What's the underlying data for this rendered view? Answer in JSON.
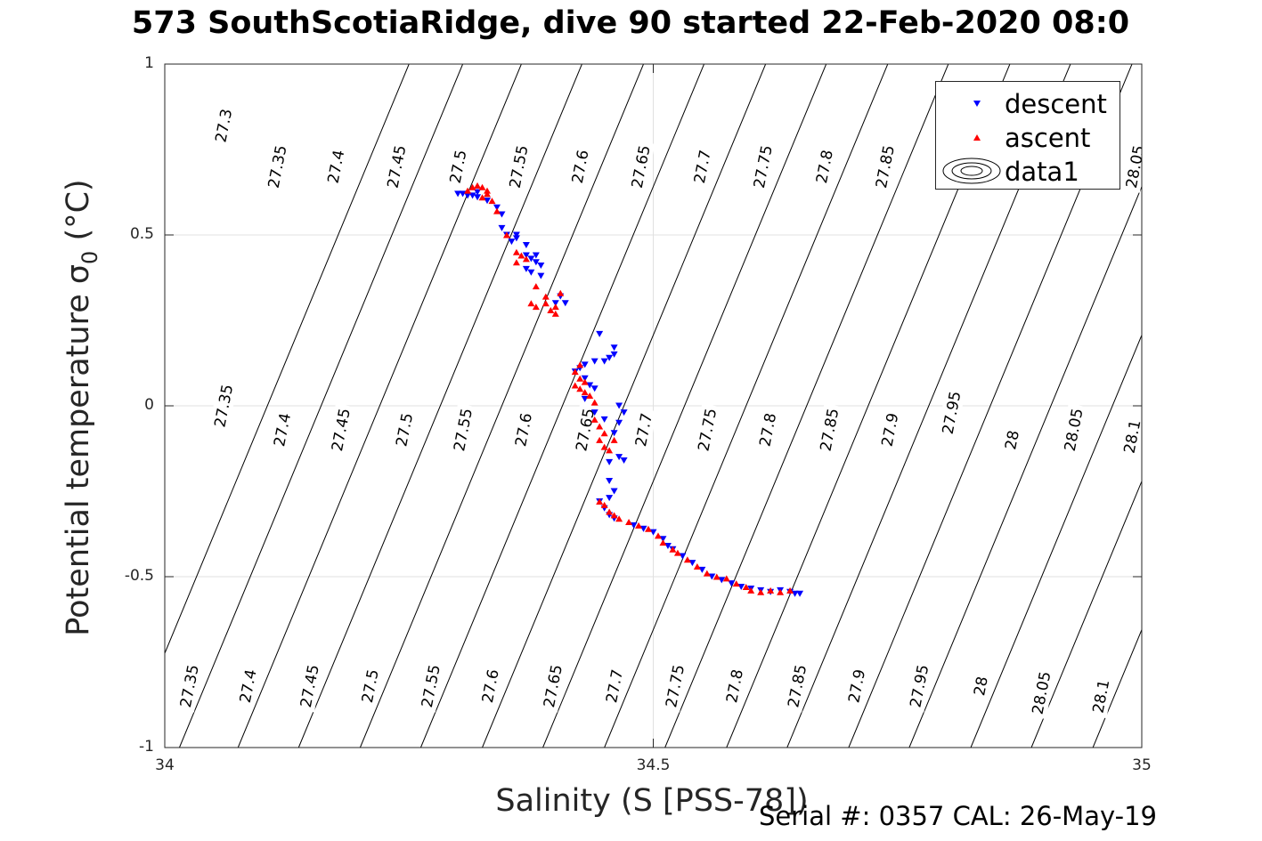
{
  "chart_data": {
    "type": "scatter",
    "title": "573 SouthScotiaRidge, dive 90 started 22-Feb-2020 08:0",
    "xlabel": "Salinity (S [PSS-78])",
    "ylabel_main": "Potential temperature σ",
    "ylabel_sub": "0",
    "ylabel_unit": " (°C)",
    "xlim": [
      34,
      35
    ],
    "ylim": [
      -1,
      1
    ],
    "xticks": [
      {
        "value": 34,
        "label": "34"
      },
      {
        "value": 34.5,
        "label": "34.5"
      },
      {
        "value": 35,
        "label": "35"
      }
    ],
    "yticks": [
      {
        "value": 1,
        "label": "1"
      },
      {
        "value": 0.5,
        "label": "0.5"
      },
      {
        "value": 0,
        "label": "0"
      },
      {
        "value": -0.5,
        "label": "-0.5"
      },
      {
        "value": -1,
        "label": "-1"
      }
    ],
    "grid": true,
    "legend_position": "top-right",
    "series": [
      {
        "name": "descent",
        "marker": "triangle-down",
        "color": "#0000ff",
        "points": [
          [
            34.3,
            0.62
          ],
          [
            34.305,
            0.62
          ],
          [
            34.31,
            0.615
          ],
          [
            34.315,
            0.615
          ],
          [
            34.32,
            0.61
          ],
          [
            34.32,
            0.625
          ],
          [
            34.33,
            0.6
          ],
          [
            34.34,
            0.58
          ],
          [
            34.345,
            0.56
          ],
          [
            34.345,
            0.52
          ],
          [
            34.35,
            0.5
          ],
          [
            34.355,
            0.48
          ],
          [
            34.36,
            0.49
          ],
          [
            34.36,
            0.5
          ],
          [
            34.37,
            0.47
          ],
          [
            34.37,
            0.44
          ],
          [
            34.375,
            0.43
          ],
          [
            34.38,
            0.42
          ],
          [
            34.38,
            0.44
          ],
          [
            34.37,
            0.4
          ],
          [
            34.375,
            0.39
          ],
          [
            34.385,
            0.38
          ],
          [
            34.385,
            0.41
          ],
          [
            34.405,
            0.32
          ],
          [
            34.4,
            0.3
          ],
          [
            34.41,
            0.3
          ],
          [
            34.43,
            0.12
          ],
          [
            34.44,
            0.13
          ],
          [
            34.45,
            0.13
          ],
          [
            34.455,
            0.14
          ],
          [
            34.46,
            0.15
          ],
          [
            34.46,
            0.17
          ],
          [
            34.42,
            0.1
          ],
          [
            34.445,
            0.21
          ],
          [
            34.425,
            0.11
          ],
          [
            34.43,
            0.08
          ],
          [
            34.435,
            0.06
          ],
          [
            34.44,
            0.05
          ],
          [
            34.43,
            0.02
          ],
          [
            34.44,
            -0.02
          ],
          [
            34.45,
            -0.04
          ],
          [
            34.465,
            -0.05
          ],
          [
            34.47,
            -0.02
          ],
          [
            34.465,
            0.0
          ],
          [
            34.46,
            -0.08
          ],
          [
            34.455,
            -0.165
          ],
          [
            34.465,
            -0.15
          ],
          [
            34.47,
            -0.16
          ],
          [
            34.455,
            -0.22
          ],
          [
            34.46,
            -0.25
          ],
          [
            34.455,
            -0.27
          ],
          [
            34.445,
            -0.28
          ],
          [
            34.45,
            -0.3
          ],
          [
            34.455,
            -0.32
          ],
          [
            34.46,
            -0.33
          ],
          [
            34.48,
            -0.35
          ],
          [
            34.49,
            -0.36
          ],
          [
            34.5,
            -0.37
          ],
          [
            34.51,
            -0.39
          ],
          [
            34.515,
            -0.41
          ],
          [
            34.52,
            -0.42
          ],
          [
            34.53,
            -0.44
          ],
          [
            34.54,
            -0.46
          ],
          [
            34.55,
            -0.48
          ],
          [
            34.56,
            -0.5
          ],
          [
            34.57,
            -0.51
          ],
          [
            34.58,
            -0.52
          ],
          [
            34.59,
            -0.53
          ],
          [
            34.6,
            -0.535
          ],
          [
            34.61,
            -0.54
          ],
          [
            34.62,
            -0.545
          ],
          [
            34.63,
            -0.54
          ],
          [
            34.64,
            -0.545
          ],
          [
            34.645,
            -0.55
          ],
          [
            34.65,
            -0.55
          ]
        ]
      },
      {
        "name": "ascent",
        "marker": "triangle-up",
        "color": "#ff0000",
        "points": [
          [
            34.31,
            0.63
          ],
          [
            34.315,
            0.64
          ],
          [
            34.32,
            0.645
          ],
          [
            34.325,
            0.64
          ],
          [
            34.33,
            0.63
          ],
          [
            34.33,
            0.62
          ],
          [
            34.325,
            0.61
          ],
          [
            34.335,
            0.6
          ],
          [
            34.34,
            0.57
          ],
          [
            34.35,
            0.5
          ],
          [
            34.36,
            0.45
          ],
          [
            34.365,
            0.44
          ],
          [
            34.37,
            0.43
          ],
          [
            34.36,
            0.42
          ],
          [
            34.38,
            0.35
          ],
          [
            34.375,
            0.3
          ],
          [
            34.38,
            0.29
          ],
          [
            34.39,
            0.3
          ],
          [
            34.395,
            0.28
          ],
          [
            34.4,
            0.29
          ],
          [
            34.4,
            0.27
          ],
          [
            34.405,
            0.33
          ],
          [
            34.39,
            0.32
          ],
          [
            34.425,
            0.12
          ],
          [
            34.42,
            0.1
          ],
          [
            34.425,
            0.08
          ],
          [
            34.43,
            0.07
          ],
          [
            34.425,
            0.05
          ],
          [
            34.43,
            0.04
          ],
          [
            34.435,
            0.03
          ],
          [
            34.42,
            0.06
          ],
          [
            34.44,
            0.01
          ],
          [
            34.44,
            -0.04
          ],
          [
            34.445,
            -0.06
          ],
          [
            34.45,
            -0.08
          ],
          [
            34.445,
            -0.1
          ],
          [
            34.45,
            -0.12
          ],
          [
            34.455,
            -0.13
          ],
          [
            34.46,
            -0.1
          ],
          [
            34.445,
            -0.28
          ],
          [
            34.45,
            -0.29
          ],
          [
            34.455,
            -0.31
          ],
          [
            34.46,
            -0.32
          ],
          [
            34.465,
            -0.33
          ],
          [
            34.475,
            -0.34
          ],
          [
            34.485,
            -0.35
          ],
          [
            34.495,
            -0.36
          ],
          [
            34.505,
            -0.38
          ],
          [
            34.51,
            -0.4
          ],
          [
            34.52,
            -0.42
          ],
          [
            34.525,
            -0.43
          ],
          [
            34.535,
            -0.45
          ],
          [
            34.545,
            -0.47
          ],
          [
            34.555,
            -0.49
          ],
          [
            34.565,
            -0.5
          ],
          [
            34.575,
            -0.505
          ],
          [
            34.585,
            -0.52
          ],
          [
            34.595,
            -0.53
          ],
          [
            34.6,
            -0.54
          ],
          [
            34.61,
            -0.545
          ],
          [
            34.62,
            -0.54
          ],
          [
            34.63,
            -0.545
          ],
          [
            34.64,
            -0.54
          ]
        ]
      }
    ],
    "legend": [
      {
        "label": "descent",
        "marker": "triangle-down",
        "color": "#0000ff"
      },
      {
        "label": "ascent",
        "marker": "triangle-up",
        "color": "#ff0000"
      },
      {
        "label": "data1",
        "marker": "contour",
        "color": "#000000"
      }
    ],
    "contours": {
      "name": "data1",
      "levels": [
        {
          "label": "27.3",
          "bottom_x": 33.96,
          "label_x": 34.06,
          "label_y": 0.82
        },
        {
          "label": "27.35",
          "bottom_x": 34.015,
          "label_x": 34.025,
          "label_y": -0.82
        },
        {
          "label": "27.35",
          "bottom_x": 34.015,
          "label_x": 34.06,
          "label_y": 0.0
        },
        {
          "label": "27.35",
          "bottom_x": 34.015,
          "label_x": 34.115,
          "label_y": 0.7
        },
        {
          "label": "27.4",
          "bottom_x": 34.075,
          "label_x": 34.085,
          "label_y": -0.82
        },
        {
          "label": "27.4",
          "bottom_x": 34.075,
          "label_x": 34.12,
          "label_y": -0.07
        },
        {
          "label": "27.4",
          "bottom_x": 34.075,
          "label_x": 34.175,
          "label_y": 0.7
        },
        {
          "label": "27.45",
          "bottom_x": 34.137,
          "label_x": 34.148,
          "label_y": -0.82
        },
        {
          "label": "27.45",
          "bottom_x": 34.137,
          "label_x": 34.18,
          "label_y": -0.07
        },
        {
          "label": "27.45",
          "bottom_x": 34.137,
          "label_x": 34.237,
          "label_y": 0.7
        },
        {
          "label": "27.5",
          "bottom_x": 34.2,
          "label_x": 34.21,
          "label_y": -0.82
        },
        {
          "label": "27.5",
          "bottom_x": 34.2,
          "label_x": 34.245,
          "label_y": -0.07
        },
        {
          "label": "27.5",
          "bottom_x": 34.2,
          "label_x": 34.3,
          "label_y": 0.7
        },
        {
          "label": "27.55",
          "bottom_x": 34.262,
          "label_x": 34.272,
          "label_y": -0.82
        },
        {
          "label": "27.55",
          "bottom_x": 34.262,
          "label_x": 34.305,
          "label_y": -0.07
        },
        {
          "label": "27.55",
          "bottom_x": 34.262,
          "label_x": 34.362,
          "label_y": 0.7
        },
        {
          "label": "27.6",
          "bottom_x": 34.325,
          "label_x": 34.333,
          "label_y": -0.82
        },
        {
          "label": "27.6",
          "bottom_x": 34.325,
          "label_x": 34.367,
          "label_y": -0.07
        },
        {
          "label": "27.6",
          "bottom_x": 34.325,
          "label_x": 34.425,
          "label_y": 0.7
        },
        {
          "label": "27.65",
          "bottom_x": 34.387,
          "label_x": 34.397,
          "label_y": -0.82
        },
        {
          "label": "27.65",
          "bottom_x": 34.387,
          "label_x": 34.43,
          "label_y": -0.07
        },
        {
          "label": "27.65",
          "bottom_x": 34.387,
          "label_x": 34.487,
          "label_y": 0.7
        },
        {
          "label": "27.7",
          "bottom_x": 34.45,
          "label_x": 34.46,
          "label_y": -0.82
        },
        {
          "label": "27.7",
          "bottom_x": 34.45,
          "label_x": 34.49,
          "label_y": -0.07
        },
        {
          "label": "27.7",
          "bottom_x": 34.45,
          "label_x": 34.55,
          "label_y": 0.7
        },
        {
          "label": "27.75",
          "bottom_x": 34.512,
          "label_x": 34.522,
          "label_y": -0.82
        },
        {
          "label": "27.75",
          "bottom_x": 34.512,
          "label_x": 34.555,
          "label_y": -0.07
        },
        {
          "label": "27.75",
          "bottom_x": 34.512,
          "label_x": 34.612,
          "label_y": 0.7
        },
        {
          "label": "27.8",
          "bottom_x": 34.575,
          "label_x": 34.583,
          "label_y": -0.82
        },
        {
          "label": "27.8",
          "bottom_x": 34.575,
          "label_x": 34.617,
          "label_y": -0.07
        },
        {
          "label": "27.8",
          "bottom_x": 34.575,
          "label_x": 34.675,
          "label_y": 0.7
        },
        {
          "label": "27.85",
          "bottom_x": 34.637,
          "label_x": 34.647,
          "label_y": -0.82
        },
        {
          "label": "27.85",
          "bottom_x": 34.637,
          "label_x": 34.68,
          "label_y": -0.07
        },
        {
          "label": "27.85",
          "bottom_x": 34.637,
          "label_x": 34.737,
          "label_y": 0.7
        },
        {
          "label": "27.9",
          "bottom_x": 34.7,
          "label_x": 34.708,
          "label_y": -0.82
        },
        {
          "label": "27.9",
          "bottom_x": 34.7,
          "label_x": 34.742,
          "label_y": -0.07
        },
        {
          "label": "27.95",
          "bottom_x": 34.762,
          "label_x": 34.772,
          "label_y": -0.82
        },
        {
          "label": "27.95",
          "bottom_x": 34.762,
          "label_x": 34.805,
          "label_y": -0.02
        },
        {
          "label": "28",
          "bottom_x": 34.825,
          "label_x": 34.835,
          "label_y": -0.82
        },
        {
          "label": "28",
          "bottom_x": 34.825,
          "label_x": 34.867,
          "label_y": -0.1
        },
        {
          "label": "28.05",
          "bottom_x": 34.887,
          "label_x": 34.897,
          "label_y": -0.84
        },
        {
          "label": "28.05",
          "bottom_x": 34.887,
          "label_x": 34.93,
          "label_y": -0.07
        },
        {
          "label": "28.05",
          "bottom_x": 34.887,
          "label_x": 34.993,
          "label_y": 0.7
        },
        {
          "label": "28.1",
          "bottom_x": 34.95,
          "label_x": 34.958,
          "label_y": -0.85
        },
        {
          "label": "28.1",
          "bottom_x": 34.95,
          "label_x": 34.99,
          "label_y": -0.09
        }
      ]
    }
  },
  "footer": {
    "serial_text": "Serial #: 0357  CAL: 26-May-19"
  }
}
